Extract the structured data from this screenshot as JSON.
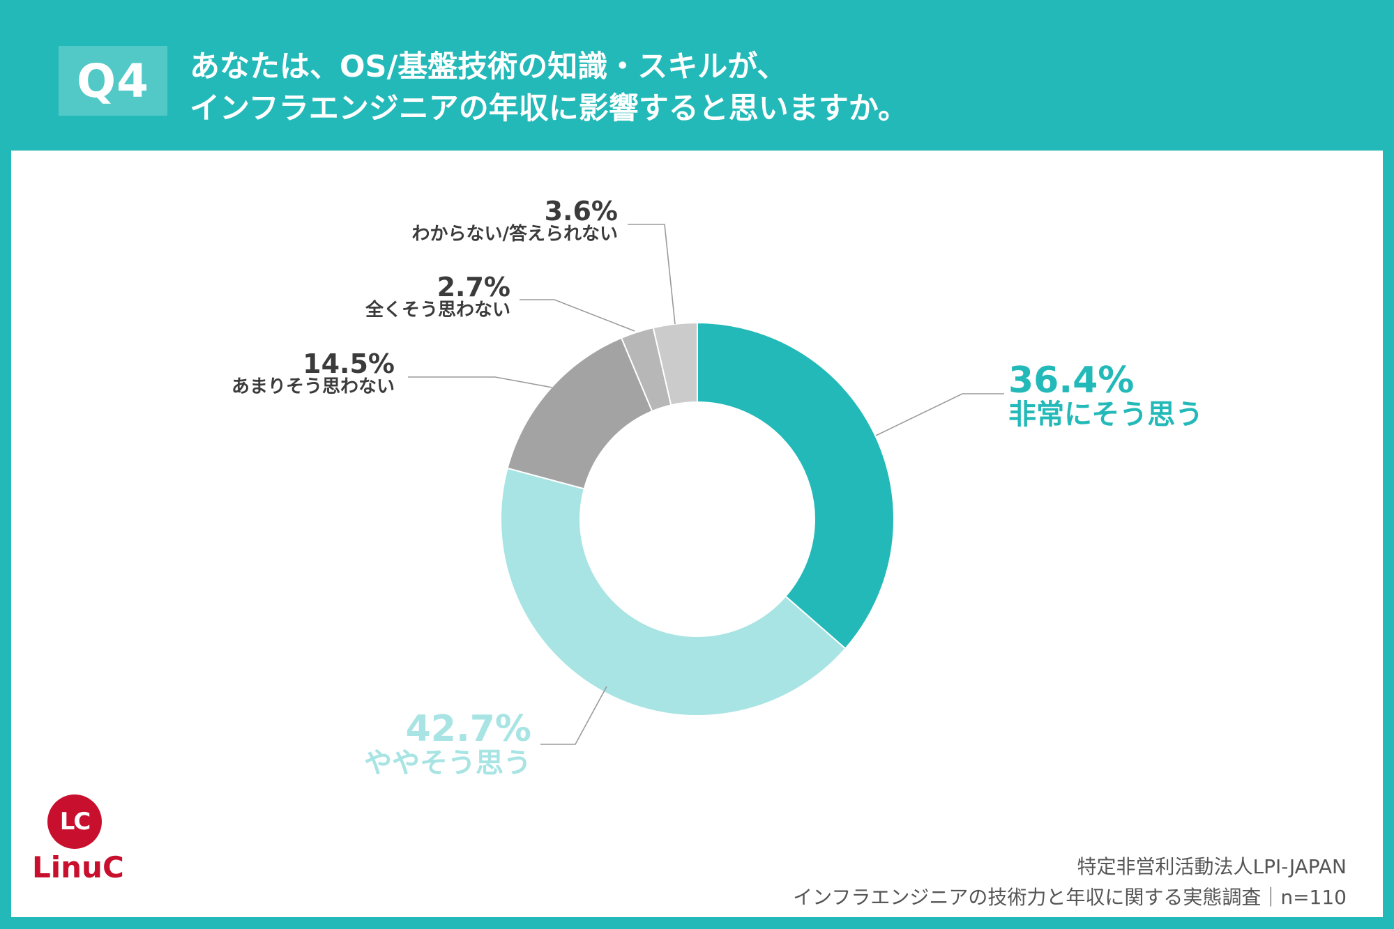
{
  "header": {
    "badge": "Q4",
    "title_line1": "あなたは、OS/基盤技術の知識・スキルが、",
    "title_line2": "インフラエンジニアの年収に影響すると思いますか。"
  },
  "chart_data": {
    "type": "pie",
    "variant": "donut",
    "title": "あなたは、OS/基盤技術の知識・スキルが、インフラエンジニアの年収に影響すると思いますか。",
    "slices": [
      {
        "label": "非常にそう思う",
        "value": 36.4,
        "pct_text": "36.4%",
        "color": "#22b9b8"
      },
      {
        "label": "ややそう思う",
        "value": 42.7,
        "pct_text": "42.7%",
        "color": "#a7e4e3"
      },
      {
        "label": "あまりそう思わない",
        "value": 14.5,
        "pct_text": "14.5%",
        "color": "#a3a3a3"
      },
      {
        "label": "全くそう思わない",
        "value": 2.7,
        "pct_text": "2.7%",
        "color": "#b7b7b7"
      },
      {
        "label": "わからない/答えられない",
        "value": 3.6,
        "pct_text": "3.6%",
        "color": "#cbcbcb"
      }
    ]
  },
  "footer": {
    "org": "特定非営利活動法人LPI-JAPAN",
    "survey": "インフラエンジニアの技術力と年収に関する実態調査｜n=110"
  },
  "logo": {
    "mark": "LC",
    "word": "LinuC",
    "color": "#c8102e"
  }
}
